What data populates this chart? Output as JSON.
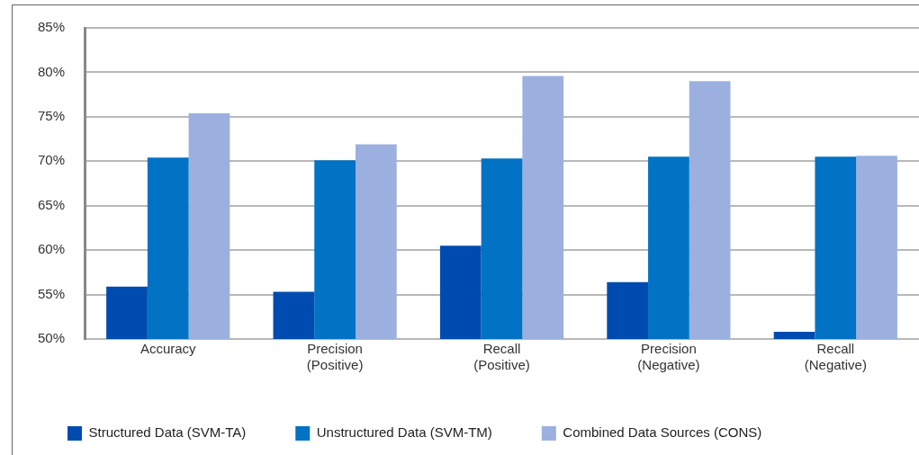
{
  "chart_data": {
    "type": "bar",
    "categories": [
      "Accuracy",
      "Precision\n(Positive)",
      "Recall\n(Positive)",
      "Precision\n(Negative)",
      "Recall\n(Negative)"
    ],
    "series": [
      {
        "name": "Structured Data (SVM-TA)",
        "color": "#004bb0",
        "values": [
          55.9,
          55.3,
          60.5,
          56.4,
          50.8
        ]
      },
      {
        "name": "Unstructured Data (SVM-TM)",
        "color": "#0272c5",
        "values": [
          70.4,
          70.1,
          70.3,
          70.5,
          70.5
        ]
      },
      {
        "name": "Combined Data Sources (CONS)",
        "color": "#9bb0df",
        "values": [
          75.4,
          71.9,
          79.6,
          79.0,
          70.6
        ]
      }
    ],
    "ylim": [
      50,
      85
    ],
    "yticks": [
      {
        "value": 50,
        "label": "50%"
      },
      {
        "value": 55,
        "label": "55%"
      },
      {
        "value": 60,
        "label": "60%"
      },
      {
        "value": 65,
        "label": "65%"
      },
      {
        "value": 70,
        "label": "70%"
      },
      {
        "value": 75,
        "label": "75%"
      },
      {
        "value": 80,
        "label": "80%"
      },
      {
        "value": 85,
        "label": "85%"
      }
    ],
    "grid": "y",
    "legend": "bottom left"
  }
}
